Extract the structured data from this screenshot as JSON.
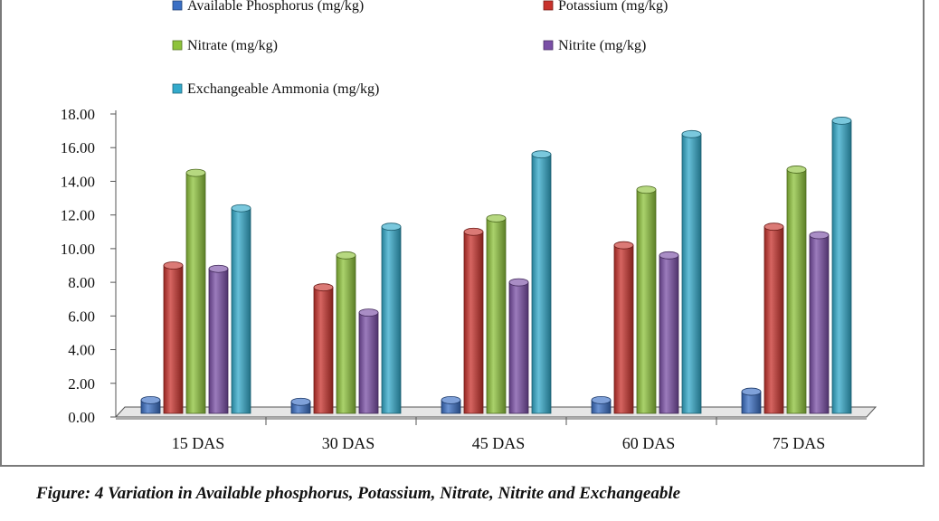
{
  "chart_data": {
    "type": "bar",
    "categories": [
      "15 DAS",
      "30 DAS",
      "45 DAS",
      "60 DAS",
      "75 DAS"
    ],
    "series": [
      {
        "name": "Available Phosphorus (mg/kg)",
        "color": "#3a6fc4",
        "values": [
          1.0,
          0.9,
          1.0,
          1.0,
          1.5
        ]
      },
      {
        "name": "Potassium (mg/kg)",
        "color": "#c8322c",
        "values": [
          9.0,
          7.7,
          11.0,
          10.2,
          11.3
        ]
      },
      {
        "name": "Nitrate (mg/kg)",
        "color": "#8ec33b",
        "values": [
          14.5,
          9.6,
          11.8,
          13.5,
          14.7
        ]
      },
      {
        "name": "Nitrite (mg/kg)",
        "color": "#7a4fa6",
        "values": [
          8.8,
          6.2,
          8.0,
          9.6,
          10.8
        ]
      },
      {
        "name": "Exchangeable Ammonia (mg/kg)",
        "color": "#33aacb",
        "values": [
          12.4,
          11.3,
          15.6,
          16.8,
          17.6
        ]
      }
    ],
    "yticks": [
      "0.00",
      "2.00",
      "4.00",
      "6.00",
      "8.00",
      "10.00",
      "12.00",
      "14.00",
      "16.00",
      "18.00"
    ],
    "ylim": [
      0,
      18
    ],
    "legend_position": "top"
  },
  "caption": "Figure: 4 Variation in Available phosphorus, Potassium, Nitrate, Nitrite and Exchangeable"
}
